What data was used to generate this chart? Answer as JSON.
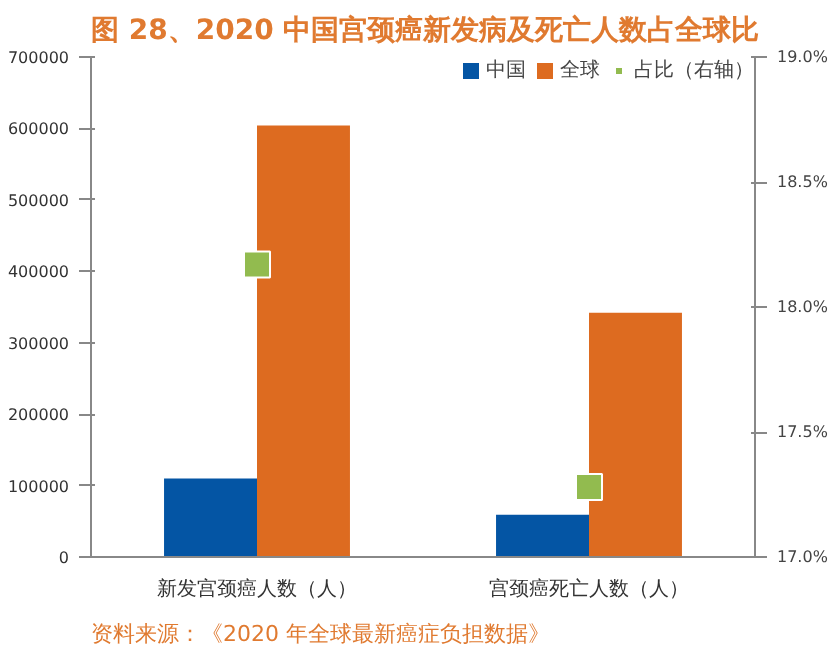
{
  "chart_data": {
    "type": "bar",
    "title": "图 28、2020 中国宫颈癌新发病及死亡人数占全球比",
    "categories": [
      "新发宫颈癌人数（人）",
      "宫颈癌死亡人数（人）"
    ],
    "series": [
      {
        "name": "中国",
        "color": "#0455a4",
        "values": [
          110000,
          59000
        ]
      },
      {
        "name": "全球",
        "color": "#dd6b20",
        "values": [
          604000,
          342000
        ]
      },
      {
        "name": "占比（右轴）",
        "color": "#92bb4f",
        "values": [
          18.17,
          17.28
        ],
        "type": "scatter",
        "axis": "y2"
      }
    ],
    "ylim": [
      0,
      700000
    ],
    "yticks": [
      0,
      100000,
      200000,
      300000,
      400000,
      500000,
      600000,
      700000
    ],
    "y2lim": [
      17.0,
      19.0
    ],
    "y2ticks": [
      {
        "value": 17.0,
        "label": "17.0%"
      },
      {
        "value": 17.5,
        "label": "17.5%"
      },
      {
        "value": 18.0,
        "label": "18.0%"
      },
      {
        "value": 18.5,
        "label": "18.5%"
      },
      {
        "value": 19.0,
        "label": "19.0%"
      }
    ],
    "marker": "square",
    "grid": false,
    "legend": "top right",
    "annotations": [
      "资料来源：《2020 年全球最新癌症负担数据》"
    ]
  }
}
